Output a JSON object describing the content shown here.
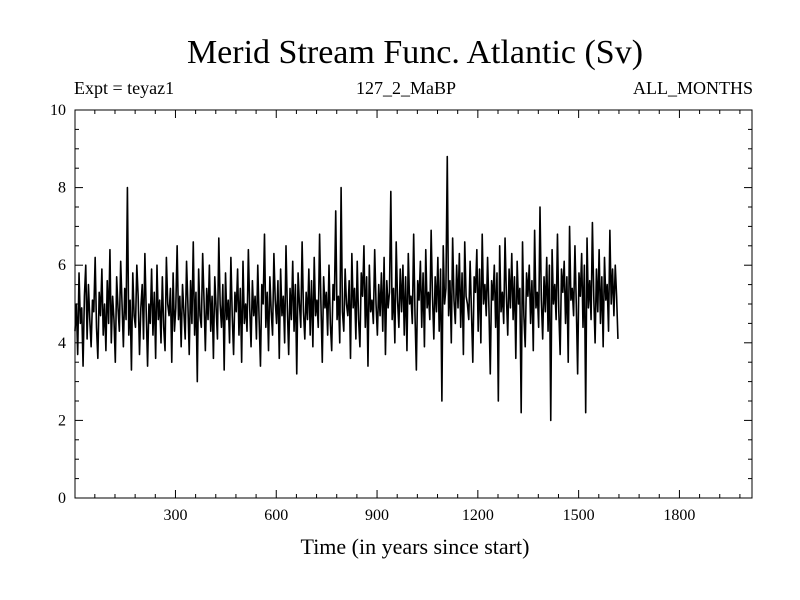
{
  "chart_data": {
    "type": "line",
    "title": "Merid Stream Func. Atlantic (Sv)",
    "subtitle_left": "Expt = teyaz1",
    "subtitle_center": "127_2_MaBP",
    "subtitle_right": "ALL_MONTHS",
    "xlabel": "Time (in years since start)",
    "ylabel": "",
    "xlim": [
      1,
      2016
    ],
    "ylim": [
      0,
      10
    ],
    "xticks": [
      300,
      600,
      900,
      1200,
      1500,
      1800
    ],
    "yticks": [
      0,
      2,
      4,
      6,
      8,
      10
    ],
    "series": [
      {
        "name": "Merid Stream Func. Atlantic",
        "color": "#000000",
        "x_start": 1,
        "x_step": 4,
        "values": [
          4.3,
          5.0,
          3.7,
          5.8,
          4.5,
          4.9,
          3.4,
          5.2,
          6.0,
          4.1,
          5.5,
          4.6,
          3.9,
          5.1,
          4.8,
          6.2,
          4.4,
          3.6,
          5.3,
          4.7,
          5.9,
          4.2,
          5.0,
          3.8,
          5.6,
          4.5,
          6.4,
          4.0,
          5.2,
          4.6,
          3.5,
          5.7,
          4.9,
          4.3,
          6.1,
          5.0,
          3.9,
          5.4,
          4.6,
          8.0,
          4.2,
          5.1,
          3.3,
          5.8,
          4.7,
          4.4,
          6.0,
          5.2,
          3.7,
          4.9,
          5.5,
          4.1,
          6.3,
          4.8,
          3.4,
          5.0,
          4.5,
          5.9,
          4.2,
          5.3,
          3.6,
          6.0,
          4.6,
          5.1,
          4.0,
          5.7,
          4.4,
          3.8,
          6.2,
          5.0,
          4.7,
          5.4,
          3.5,
          5.8,
          4.3,
          4.9,
          6.5,
          4.6,
          5.2,
          3.9,
          5.5,
          4.8,
          4.1,
          6.1,
          5.0,
          3.7,
          5.6,
          4.5,
          6.6,
          4.2,
          5.3,
          3.0,
          5.9,
          4.7,
          4.4,
          6.3,
          5.1,
          3.8,
          5.4,
          4.6,
          6.0,
          4.3,
          5.2,
          3.6,
          5.7,
          4.9,
          4.1,
          6.7,
          5.0,
          4.4,
          5.5,
          3.3,
          5.8,
          4.6,
          5.1,
          4.0,
          6.2,
          4.7,
          3.7,
          5.3,
          4.8,
          5.9,
          4.2,
          5.4,
          3.5,
          6.1,
          4.5,
          5.0,
          4.3,
          6.4,
          4.9,
          3.9,
          5.6,
          4.7,
          5.2,
          4.1,
          6.0,
          4.6,
          3.4,
          5.5,
          5.0,
          6.8,
          4.4,
          5.3,
          3.8,
          5.7,
          4.8,
          4.2,
          6.3,
          5.1,
          4.5,
          5.6,
          3.6,
          5.9,
          4.7,
          5.2,
          4.0,
          6.5,
          4.9,
          3.7,
          5.4,
          4.6,
          6.1,
          4.3,
          5.5,
          3.2,
          5.8,
          5.0,
          4.4,
          6.6,
          4.8,
          4.1,
          5.3,
          4.6,
          5.9,
          4.2,
          5.6,
          3.9,
          6.2,
          4.7,
          5.1,
          4.4,
          6.8,
          5.0,
          3.5,
          5.7,
          4.9,
          5.3,
          4.2,
          6.0,
          4.5,
          3.8,
          5.5,
          5.1,
          7.4,
          4.6,
          5.2,
          4.0,
          8.0,
          4.8,
          4.3,
          5.9,
          5.0,
          4.7,
          5.6,
          3.6,
          6.3,
          4.9,
          5.4,
          4.1,
          6.1,
          4.6,
          3.9,
          5.8,
          5.2,
          6.5,
          4.4,
          5.7,
          3.4,
          6.0,
          4.8,
          5.1,
          4.5,
          6.4,
          5.0,
          4.2,
          5.5,
          4.7,
          5.8,
          4.3,
          6.2,
          3.7,
          5.6,
          4.9,
          5.3,
          7.9,
          4.6,
          5.4,
          4.0,
          6.6,
          5.1,
          4.4,
          5.9,
          4.8,
          6.0,
          4.2,
          5.7,
          3.8,
          6.3,
          5.0,
          5.2,
          4.5,
          6.8,
          4.7,
          3.3,
          5.6,
          5.1,
          6.1,
          4.4,
          5.8,
          3.9,
          6.4,
          4.9,
          5.3,
          4.6,
          6.9,
          5.2,
          4.1,
          5.7,
          4.8,
          6.2,
          4.3,
          5.9,
          2.5,
          6.5,
          5.0,
          5.4,
          8.8,
          4.7,
          5.6,
          4.0,
          6.7,
          5.1,
          4.5,
          6.0,
          4.9,
          6.3,
          4.4,
          5.8,
          3.7,
          6.6,
          5.2,
          5.0,
          4.6,
          6.1,
          4.8,
          3.5,
          5.7,
          5.3,
          6.4,
          4.3,
          5.9,
          4.0,
          6.8,
          5.0,
          5.5,
          4.7,
          6.2,
          4.9,
          3.2,
          5.6,
          5.1,
          6.0,
          4.4,
          5.8,
          2.5,
          6.5,
          4.8,
          5.3,
          4.5,
          6.7,
          5.2,
          4.2,
          5.9,
          4.9,
          6.3,
          4.6,
          5.7,
          3.6,
          6.1,
          5.0,
          5.4,
          2.2,
          6.6,
          4.7,
          3.9,
          5.8,
          5.2,
          6.0,
          4.5,
          5.6,
          3.8,
          6.9,
          4.9,
          5.3,
          4.4,
          7.5,
          5.1,
          4.1,
          5.7,
          4.8,
          6.2,
          4.3,
          6.0,
          2.0,
          6.4,
          5.0,
          5.5,
          4.6,
          6.8,
          4.8,
          3.7,
          5.9,
          5.3,
          6.1,
          4.5,
          5.7,
          3.5,
          7.0,
          5.1,
          5.4,
          4.7,
          6.5,
          5.0,
          3.2,
          5.8,
          5.2,
          6.3,
          4.4,
          6.0,
          2.2,
          6.7,
          4.9,
          5.6,
          4.6,
          7.1,
          5.2,
          4.0,
          5.9,
          4.8,
          6.4,
          4.5,
          5.7,
          3.9,
          6.2,
          5.1,
          5.5,
          4.3,
          6.9,
          5.0,
          5.9,
          4.7,
          6.0,
          5.2,
          4.1
        ]
      }
    ]
  }
}
